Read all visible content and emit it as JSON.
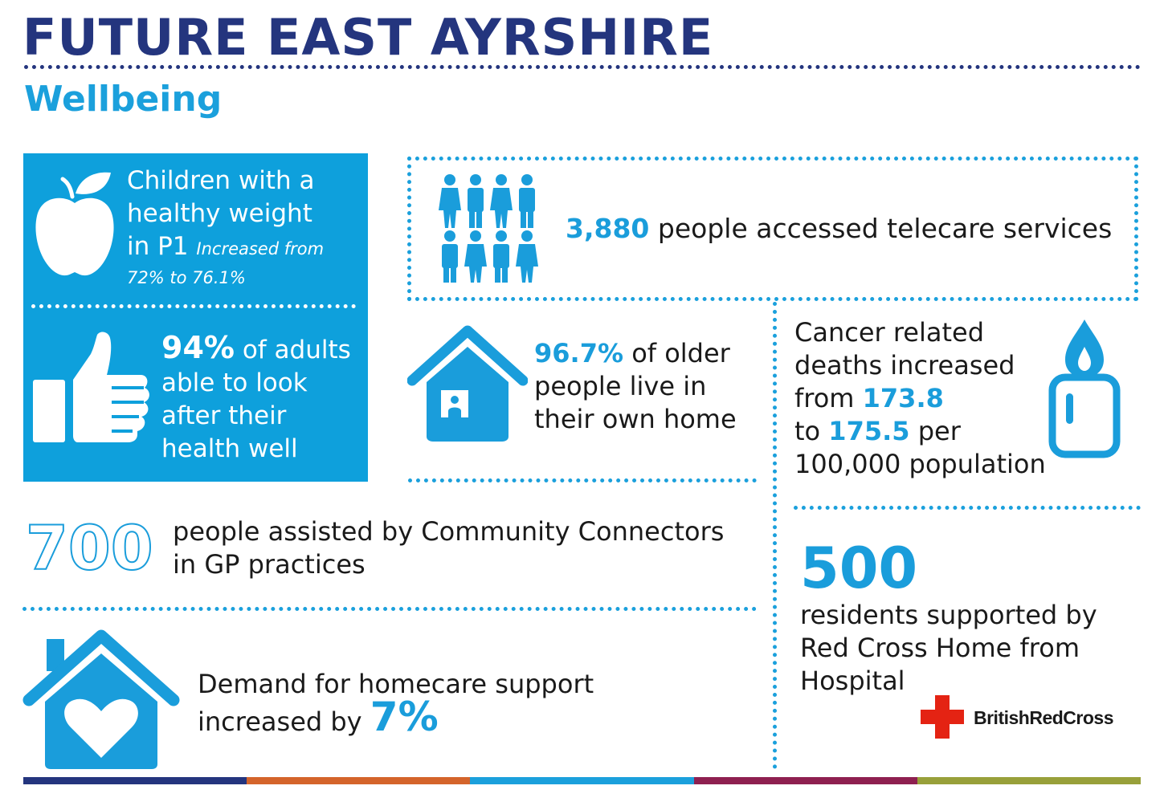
{
  "header": {
    "title": "FUTURE EAST AYRSHIRE",
    "subtitle": "Wellbeing"
  },
  "colors": {
    "navy": "#24357e",
    "blue": "#1ba0dc",
    "panel_blue": "#0ea0dc",
    "red_cross": "#e42313",
    "band": [
      "#24357e",
      "#d4642b",
      "#1ba0dc",
      "#8e2050",
      "#98a03a"
    ]
  },
  "stats": {
    "children": {
      "line1": "Children with a",
      "line2": "healthy weight",
      "line3": "in P1",
      "note1": "Increased from",
      "note2": "72% to 76.1%",
      "icon": "apple-icon"
    },
    "adults": {
      "value": "94%",
      "line1": "of adults",
      "line2": "able to look",
      "line3": "after their",
      "line4": "health well",
      "icon": "thumbs-up-icon"
    },
    "telecare": {
      "value": "3,880",
      "text": "people accessed telecare services",
      "icon": "people-group-icon"
    },
    "older_people": {
      "value": "96.7%",
      "line1": "of older",
      "line2": "people live in",
      "line3": "their own home",
      "icon": "house-person-icon"
    },
    "cancer": {
      "line1": "Cancer related",
      "line2": "deaths increased",
      "line3_prefix": "from",
      "from_value": "173.8",
      "line4_prefix": "to",
      "to_value": "175.5",
      "line4_suffix": "per",
      "line5": "100,000 population",
      "icon": "candle-icon"
    },
    "connectors": {
      "value": "700",
      "line1": "people assisted by Community Connectors",
      "line2": "in GP practices"
    },
    "red_cross": {
      "value": "500",
      "line1": "residents supported by",
      "line2": "Red Cross Home from",
      "line3": "Hospital",
      "logo_text": "BritishRedCross"
    },
    "homecare": {
      "line1": "Demand for homecare support",
      "line2_prefix": "increased by",
      "value": "7%",
      "icon": "house-heart-icon"
    }
  }
}
